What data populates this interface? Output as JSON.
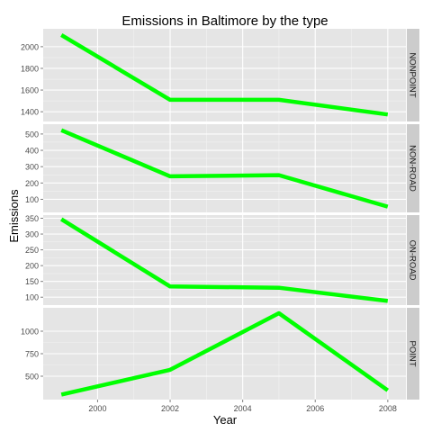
{
  "chart_data": {
    "type": "line",
    "title": "Emissions in Baltimore by the type",
    "xlabel": "Year",
    "ylabel": "Emissions",
    "x": [
      1999,
      2002,
      2005,
      2008
    ],
    "x_ticks": [
      2000,
      2002,
      2004,
      2006,
      2008
    ],
    "xlim": [
      1998.5,
      2008.5
    ],
    "line_color": "#00ff00",
    "panel_bg": "#e5e5e5",
    "strip_bg": "#cccccc",
    "grid": true,
    "facets": [
      {
        "name": "NONPOINT",
        "values": [
          2108,
          1510,
          1510,
          1375
        ],
        "ylim": [
          1310,
          2165
        ],
        "y_ticks": [
          1400,
          1600,
          1800,
          2000
        ]
      },
      {
        "name": "NON-ROAD",
        "values": [
          523,
          241,
          248,
          55
        ],
        "ylim": [
          20,
          560
        ],
        "y_ticks": [
          100,
          200,
          300,
          400,
          500
        ]
      },
      {
        "name": "ON-ROAD",
        "values": [
          347,
          134,
          130,
          88
        ],
        "ylim": [
          75,
          360
        ],
        "y_ticks": [
          100,
          150,
          200,
          250,
          300,
          350
        ]
      },
      {
        "name": "POINT",
        "values": [
          296,
          571,
          1200,
          343
        ],
        "ylim": [
          240,
          1260
        ],
        "y_ticks": [
          500,
          750,
          1000
        ]
      }
    ]
  }
}
